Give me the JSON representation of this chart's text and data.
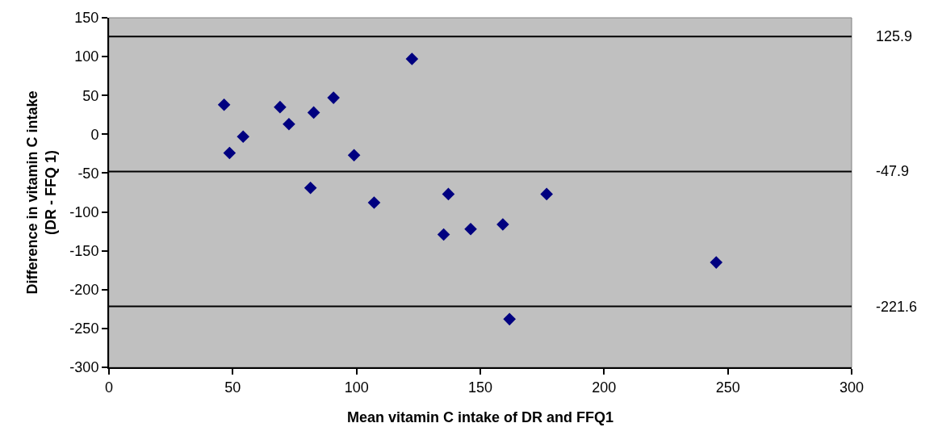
{
  "chart_data": {
    "type": "scatter",
    "xlabel": "Mean vitamin C intake of DR and FFQ1",
    "ylabel": "Difference in vitamin C intake\n(DR - FFQ 1)",
    "x": [
      46.5,
      48.7,
      54.2,
      69.1,
      72.7,
      81.4,
      82.7,
      90.7,
      99.0,
      107.1,
      122.4,
      135.2,
      137.1,
      146.1,
      159.1,
      161.8,
      176.8,
      245.3
    ],
    "series": [
      {
        "color": "#000080",
        "values": [
          38,
          -24,
          -3,
          35,
          13,
          -69,
          28,
          47,
          -27,
          -88,
          97,
          -129,
          -77,
          -122,
          -116,
          -238,
          -77,
          -165
        ]
      }
    ],
    "marker": "diamond",
    "grid": false,
    "xlim": [
      0,
      300
    ],
    "xticks": [
      0,
      50,
      100,
      150,
      200,
      250,
      300
    ],
    "ylim": [
      -300,
      150
    ],
    "yticks": [
      -300,
      -250,
      -200,
      -150,
      -100,
      -50,
      0,
      50,
      100,
      150
    ],
    "ref_lines": [
      {
        "axis": "y",
        "value": 125.9,
        "label": "125.9",
        "color": "#000000"
      },
      {
        "axis": "y",
        "value": -47.9,
        "label": "-47.9",
        "color": "#000000"
      },
      {
        "axis": "y",
        "value": -221.6,
        "label": "-221.6",
        "color": "#000000"
      }
    ]
  }
}
